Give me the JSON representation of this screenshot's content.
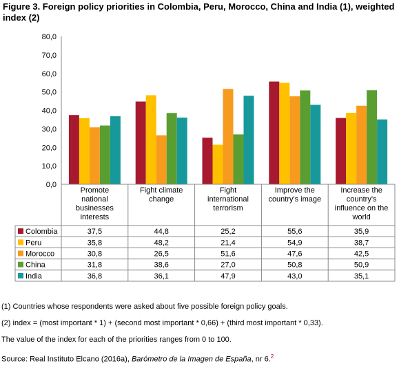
{
  "title": "Figure 3. Foreign policy priorities in Colombia, Peru, Morocco, China and India (1), weighted index (2)",
  "notes": [
    "(1) Countries whose respondents were asked about five possible foreign policy goals.",
    "(2) index = (most important * 1) + (second most important * 0,66) + (third most important * 0,33).",
    "The value of the index for each of the priorities ranges from 0 to 100."
  ],
  "source": {
    "prefix": "Source: Real Instituto Elcano (2016a), ",
    "italic": "Barómetro de la Imagen de España",
    "suffix": ", nr 6.",
    "sup": "2"
  },
  "chart_data": {
    "type": "bar",
    "ylim": [
      0,
      80
    ],
    "yticks": [
      "0,0",
      "10,0",
      "20,0",
      "30,0",
      "40,0",
      "50,0",
      "60,0",
      "70,0",
      "80,0"
    ],
    "grid": false,
    "legend": "table-left",
    "categories": [
      [
        "Promote",
        "national",
        "businesses",
        "interests"
      ],
      [
        "Fight climate",
        "change"
      ],
      [
        "Fight",
        "international",
        "terrorism"
      ],
      [
        "Improve the",
        "country's image"
      ],
      [
        "Increase the",
        "country's",
        "influence on the",
        "world"
      ]
    ],
    "series": [
      {
        "name": "Colombia",
        "color": "#a6192e",
        "values": [
          37.5,
          44.8,
          25.2,
          55.6,
          35.9
        ],
        "labels": [
          "37,5",
          "44,8",
          "25,2",
          "55,6",
          "35,9"
        ]
      },
      {
        "name": "Peru",
        "color": "#ffc000",
        "values": [
          35.8,
          48.2,
          21.4,
          54.9,
          38.7
        ],
        "labels": [
          "35,8",
          "48,2",
          "21,4",
          "54,9",
          "38,7"
        ]
      },
      {
        "name": "Morocco",
        "color": "#f79b1f",
        "values": [
          30.8,
          26.5,
          51.6,
          47.6,
          42.5
        ],
        "labels": [
          "30,8",
          "26,5",
          "51,6",
          "47,6",
          "42,5"
        ]
      },
      {
        "name": "China",
        "color": "#5a9e32",
        "values": [
          31.8,
          38.6,
          27.0,
          50.8,
          50.9
        ],
        "labels": [
          "31,8",
          "38,6",
          "27,0",
          "50,8",
          "50,9"
        ]
      },
      {
        "name": "India",
        "color": "#17999b",
        "values": [
          36.8,
          36.1,
          47.9,
          43.0,
          35.1
        ],
        "labels": [
          "36,8",
          "36,1",
          "47,9",
          "43,0",
          "35,1"
        ]
      }
    ]
  }
}
